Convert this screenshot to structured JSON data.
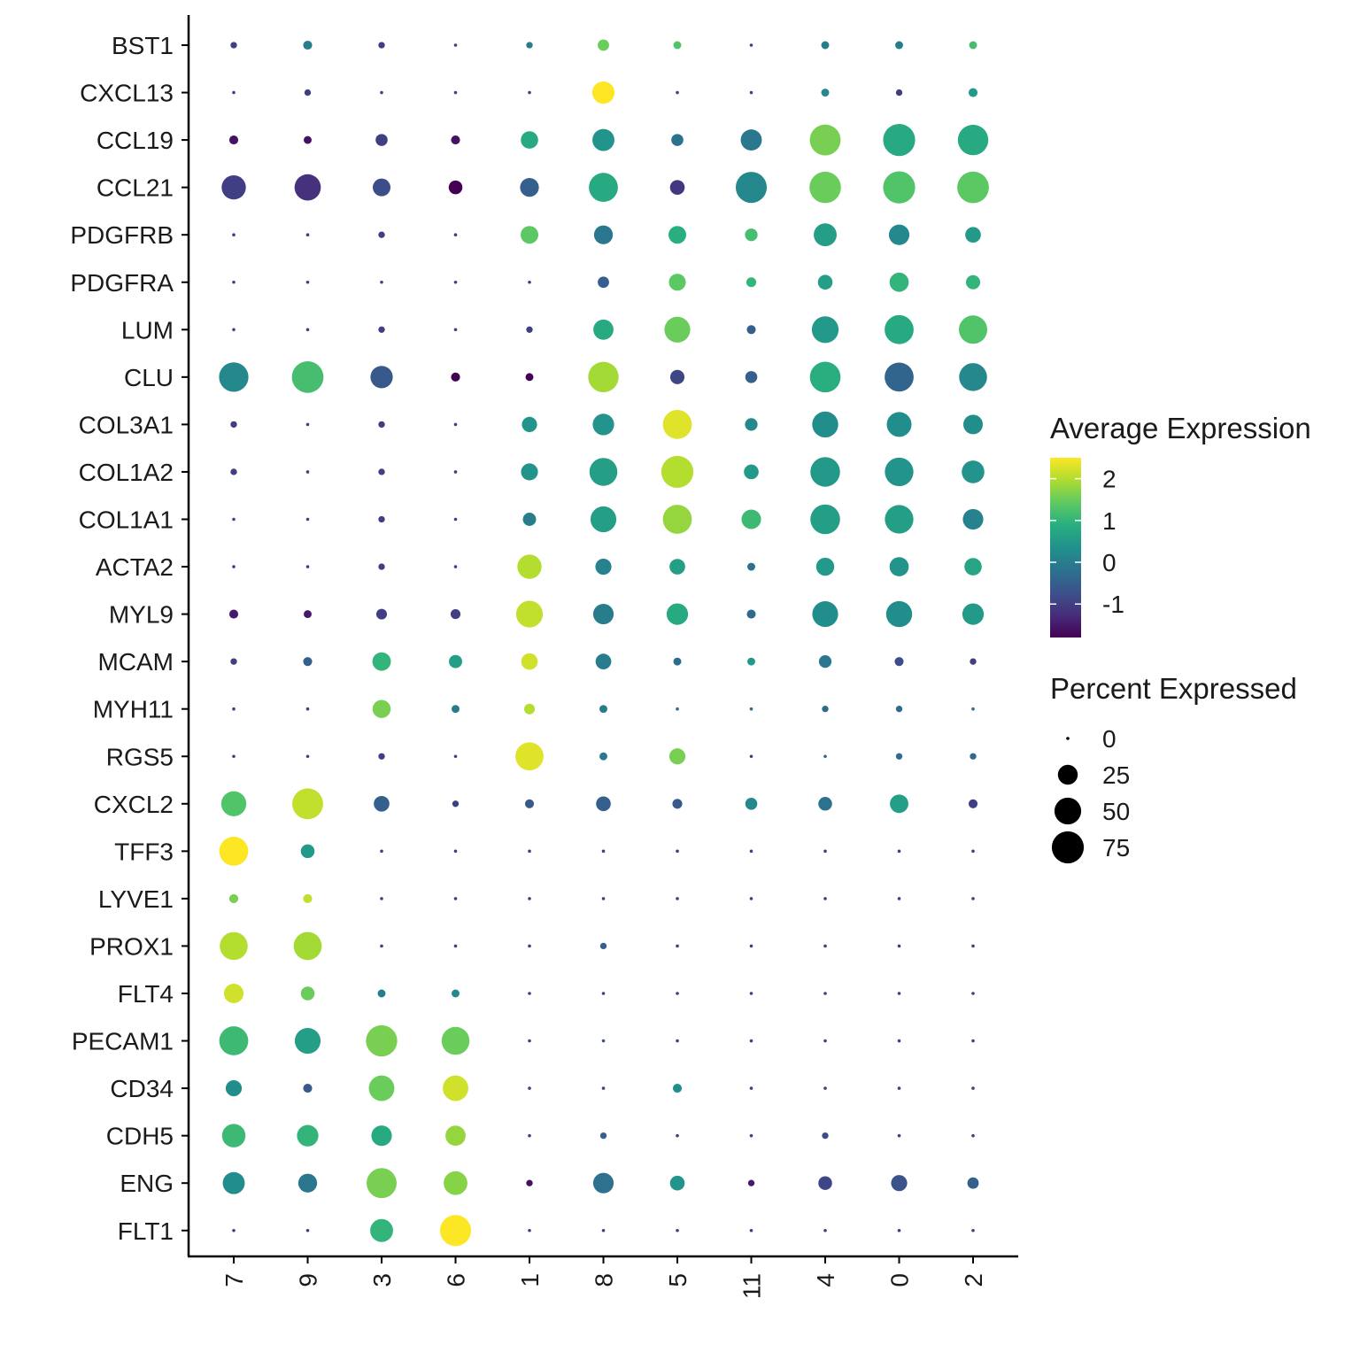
{
  "chart_data": {
    "type": "dotplot",
    "genes": [
      "BST1",
      "CXCL13",
      "CCL19",
      "CCL21",
      "PDGFRB",
      "PDGFRA",
      "LUM",
      "CLU",
      "COL3A1",
      "COL1A2",
      "COL1A1",
      "ACTA2",
      "MYL9",
      "MCAM",
      "MYH11",
      "RGS5",
      "CXCL2",
      "TFF3",
      "LYVE1",
      "PROX1",
      "FLT4",
      "PECAM1",
      "CD34",
      "CDH5",
      "ENG",
      "FLT1"
    ],
    "clusters": [
      "7",
      "9",
      "3",
      "6",
      "1",
      "8",
      "5",
      "11",
      "4",
      "0",
      "2"
    ],
    "avg_expression": [
      [
        -1.0,
        0.0,
        -1.0,
        -1.0,
        0.0,
        1.5,
        1.3,
        -1.0,
        0.0,
        0.0,
        1.2
      ],
      [
        -1.0,
        -1.0,
        -1.0,
        -1.0,
        -1.0,
        2.5,
        -1.0,
        -1.0,
        0.2,
        -1.0,
        0.5
      ],
      [
        -1.6,
        -1.6,
        -1.0,
        -1.6,
        0.8,
        0.4,
        -0.2,
        -0.1,
        1.6,
        0.8,
        0.8
      ],
      [
        -1.0,
        -1.2,
        -0.8,
        -1.8,
        -0.5,
        0.8,
        -1.1,
        0.2,
        1.5,
        1.3,
        1.4
      ],
      [
        -1.0,
        -1.0,
        -1.0,
        -1.0,
        1.4,
        -0.1,
        0.9,
        1.2,
        0.6,
        0.2,
        0.5
      ],
      [
        -1.0,
        -1.0,
        -1.0,
        -1.0,
        -1.0,
        -0.5,
        1.4,
        1.0,
        0.6,
        1.0,
        1.0
      ],
      [
        -1.0,
        -1.0,
        -1.0,
        -1.0,
        -1.0,
        0.8,
        1.5,
        -0.5,
        0.5,
        0.8,
        1.3
      ],
      [
        0.2,
        1.2,
        -0.6,
        -1.8,
        -1.8,
        1.9,
        -0.9,
        -0.5,
        0.9,
        -0.4,
        0.2
      ],
      [
        -1.0,
        -1.0,
        -1.0,
        -1.0,
        0.4,
        0.4,
        2.3,
        0.2,
        0.3,
        0.3,
        0.3
      ],
      [
        -1.0,
        -1.0,
        -1.0,
        -1.0,
        0.4,
        0.6,
        2.0,
        0.5,
        0.5,
        0.4,
        0.4
      ],
      [
        -1.0,
        -1.0,
        -1.0,
        -1.0,
        0.0,
        0.6,
        1.8,
        1.1,
        0.6,
        0.6,
        0.1
      ],
      [
        -1.0,
        -1.0,
        -1.0,
        -1.0,
        2.0,
        0.1,
        0.6,
        -0.2,
        0.5,
        0.4,
        0.7
      ],
      [
        -1.5,
        -1.5,
        -1.0,
        -1.0,
        2.1,
        0.0,
        0.8,
        -0.3,
        0.3,
        0.3,
        0.5
      ],
      [
        -1.0,
        -0.5,
        1.0,
        0.6,
        2.2,
        0.0,
        -0.3,
        0.5,
        -0.1,
        -0.8,
        -1.0
      ],
      [
        -1.0,
        -1.0,
        1.6,
        0.0,
        2.0,
        0.0,
        -0.3,
        -0.3,
        -0.3,
        -0.3,
        -0.3
      ],
      [
        -1.0,
        -1.0,
        -1.0,
        -1.0,
        2.3,
        -0.1,
        1.6,
        -1.0,
        -0.5,
        -0.3,
        -0.3
      ],
      [
        1.3,
        2.1,
        -0.5,
        -1.0,
        -0.6,
        -0.5,
        -0.6,
        0.2,
        -0.2,
        0.6,
        -1.0
      ],
      [
        2.5,
        0.5,
        -1.0,
        -1.0,
        -1.0,
        -1.0,
        -1.0,
        -1.0,
        -1.0,
        -1.0,
        -1.0
      ],
      [
        1.6,
        2.1,
        -1.0,
        -1.0,
        -1.0,
        -1.0,
        -1.0,
        -1.0,
        -1.0,
        -1.0,
        -1.0
      ],
      [
        2.0,
        1.9,
        -1.0,
        -1.0,
        -1.0,
        -0.5,
        -1.0,
        -1.0,
        -1.0,
        -1.0,
        -1.0
      ],
      [
        2.2,
        1.5,
        0.0,
        0.2,
        -1.0,
        -1.0,
        -1.0,
        -1.0,
        -1.0,
        -1.0,
        -1.0
      ],
      [
        1.1,
        0.6,
        1.6,
        1.5,
        -1.0,
        -0.7,
        -1.0,
        -1.0,
        -1.0,
        -1.0,
        -1.0
      ],
      [
        0.3,
        -0.6,
        1.5,
        2.2,
        -1.0,
        -1.0,
        0.3,
        -1.0,
        -1.0,
        -1.0,
        -1.0
      ],
      [
        1.1,
        1.0,
        0.8,
        1.8,
        -1.0,
        -0.5,
        -1.0,
        -1.0,
        -0.8,
        -1.0,
        -1.0
      ],
      [
        0.3,
        -0.1,
        1.6,
        1.7,
        -1.6,
        -0.2,
        0.4,
        -1.5,
        -0.9,
        -0.7,
        -0.5
      ],
      [
        -1.0,
        -1.0,
        1.0,
        2.5,
        -1.0,
        -1.0,
        -1.0,
        -1.0,
        -1.0,
        -1.0,
        -1.0
      ]
    ],
    "pct_expressed": [
      [
        1,
        3,
        1,
        0,
        1,
        6,
        2,
        0,
        2,
        2,
        2
      ],
      [
        0,
        1,
        0,
        0,
        0,
        33,
        0,
        0,
        2,
        1,
        3
      ],
      [
        3,
        2,
        7,
        3,
        18,
        32,
        7,
        29,
        69,
        75,
        67
      ],
      [
        40,
        48,
        19,
        10,
        22,
        60,
        12,
        70,
        72,
        75,
        73
      ],
      [
        0,
        0,
        1,
        0,
        19,
        22,
        19,
        8,
        35,
        27,
        14
      ],
      [
        0,
        0,
        0,
        0,
        0,
        6,
        17,
        4,
        12,
        23,
        11
      ],
      [
        0,
        0,
        1,
        0,
        1,
        26,
        46,
        3,
        50,
        60,
        57
      ],
      [
        62,
        73,
        33,
        3,
        2,
        67,
        11,
        7,
        68,
        60,
        55
      ],
      [
        1,
        0,
        1,
        0,
        13,
        30,
        60,
        8,
        47,
        42,
        24
      ],
      [
        1,
        0,
        1,
        0,
        17,
        55,
        75,
        12,
        63,
        58,
        34
      ],
      [
        0,
        0,
        1,
        0,
        9,
        46,
        60,
        24,
        63,
        58,
        27
      ],
      [
        0,
        0,
        1,
        0,
        40,
        15,
        14,
        2,
        20,
        23,
        18
      ],
      [
        3,
        2,
        5,
        4,
        50,
        27,
        30,
        3,
        46,
        47,
        30
      ],
      [
        1,
        3,
        21,
        9,
        16,
        14,
        2,
        2,
        8,
        3,
        1
      ],
      [
        0,
        0,
        20,
        2,
        5,
        2,
        0,
        0,
        1,
        1,
        0
      ],
      [
        0,
        0,
        1,
        0,
        56,
        2,
        15,
        0,
        0,
        1,
        1
      ],
      [
        43,
        69,
        14,
        1,
        3,
        12,
        4,
        7,
        10,
        21,
        3
      ],
      [
        60,
        10,
        0,
        0,
        0,
        0,
        0,
        0,
        0,
        0,
        0
      ],
      [
        3,
        3,
        0,
        0,
        0,
        0,
        0,
        0,
        0,
        0,
        0
      ],
      [
        55,
        56,
        0,
        0,
        0,
        1,
        0,
        0,
        0,
        0,
        0
      ],
      [
        24,
        10,
        2,
        2,
        0,
        0,
        0,
        0,
        0,
        0,
        0
      ],
      [
        60,
        46,
        71,
        55,
        0,
        0,
        0,
        0,
        0,
        0,
        0
      ],
      [
        15,
        3,
        45,
        45,
        0,
        0,
        3,
        0,
        0,
        0,
        0
      ],
      [
        37,
        30,
        27,
        26,
        0,
        1,
        0,
        0,
        1,
        0,
        0
      ],
      [
        32,
        22,
        65,
        38,
        1,
        27,
        12,
        1,
        10,
        15,
        6
      ],
      [
        0,
        0,
        35,
        70,
        0,
        0,
        0,
        0,
        0,
        0,
        0
      ]
    ],
    "legend_color": {
      "title": "Average Expression",
      "ticks": [
        2,
        1,
        0,
        -1
      ],
      "ticks_text": [
        "2",
        "1",
        "0",
        "-1"
      ],
      "range": [
        -1.8,
        2.5
      ],
      "palette": "viridis"
    },
    "legend_size": {
      "title": "Percent Expressed",
      "ticks": [
        0,
        25,
        50,
        75
      ],
      "ticks_text": [
        "0",
        "25",
        "50",
        "75"
      ]
    },
    "legend_placement": "right"
  }
}
